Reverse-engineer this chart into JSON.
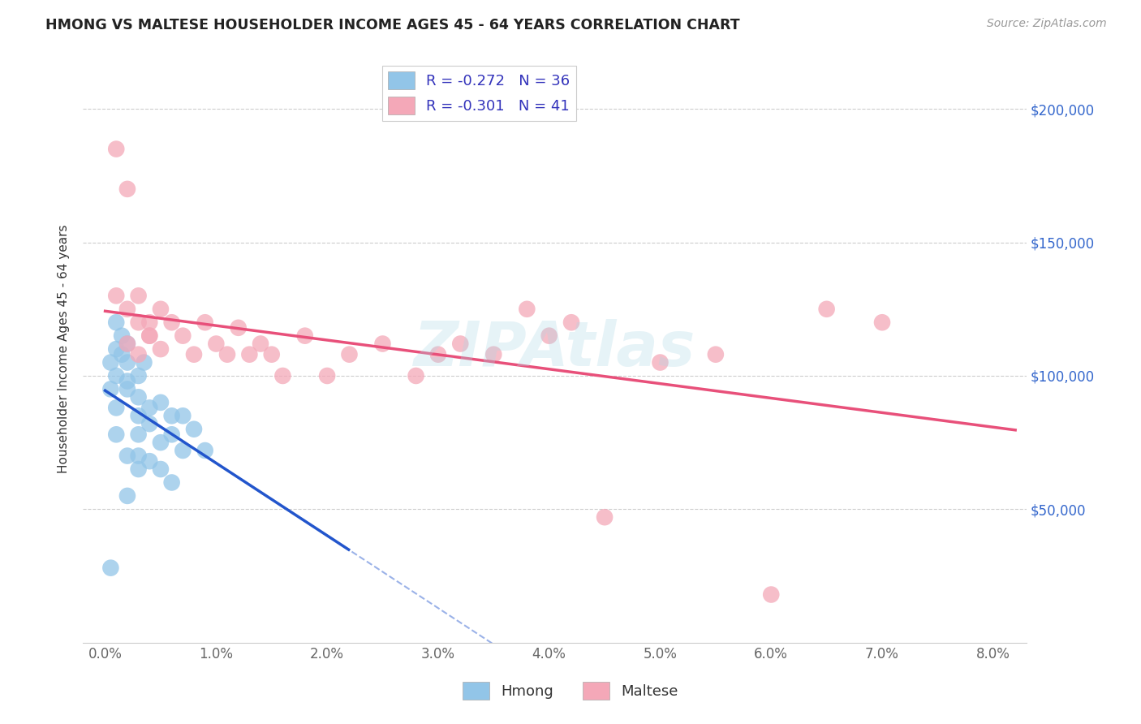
{
  "title": "HMONG VS MALTESE HOUSEHOLDER INCOME AGES 45 - 64 YEARS CORRELATION CHART",
  "source": "Source: ZipAtlas.com",
  "ylabel": "Householder Income Ages 45 - 64 years",
  "xlabel_ticks": [
    "0.0%",
    "1.0%",
    "2.0%",
    "3.0%",
    "4.0%",
    "5.0%",
    "6.0%",
    "7.0%",
    "8.0%"
  ],
  "xlabel_vals": [
    0.0,
    0.01,
    0.02,
    0.03,
    0.04,
    0.05,
    0.06,
    0.07,
    0.08
  ],
  "ytick_labels": [
    "$50,000",
    "$100,000",
    "$150,000",
    "$200,000"
  ],
  "ytick_vals": [
    50000,
    100000,
    150000,
    200000
  ],
  "ylim": [
    0,
    220000
  ],
  "xlim": [
    -0.002,
    0.083
  ],
  "legend_hmong": "R = -0.272   N = 36",
  "legend_maltese": "R = -0.301   N = 41",
  "hmong_color": "#92C5E8",
  "maltese_color": "#F4A8B8",
  "hmong_line_color": "#2255CC",
  "maltese_line_color": "#E8507A",
  "watermark": "ZIPAtlas",
  "background_color": "#ffffff",
  "grid_color": "#cccccc",
  "hmong_x": [
    0.0005,
    0.001,
    0.001,
    0.001,
    0.0015,
    0.0015,
    0.002,
    0.002,
    0.002,
    0.002,
    0.003,
    0.003,
    0.003,
    0.003,
    0.0035,
    0.004,
    0.004,
    0.005,
    0.005,
    0.006,
    0.006,
    0.007,
    0.007,
    0.008,
    0.009,
    0.0005,
    0.001,
    0.001,
    0.002,
    0.003,
    0.003,
    0.004,
    0.005,
    0.006,
    0.002,
    0.0005
  ],
  "hmong_y": [
    105000,
    120000,
    110000,
    100000,
    115000,
    108000,
    105000,
    98000,
    112000,
    95000,
    100000,
    92000,
    85000,
    78000,
    105000,
    88000,
    82000,
    90000,
    75000,
    85000,
    78000,
    85000,
    72000,
    80000,
    72000,
    95000,
    88000,
    78000,
    70000,
    70000,
    65000,
    68000,
    65000,
    60000,
    55000,
    28000
  ],
  "maltese_x": [
    0.001,
    0.001,
    0.002,
    0.002,
    0.003,
    0.003,
    0.004,
    0.004,
    0.005,
    0.005,
    0.006,
    0.007,
    0.008,
    0.009,
    0.01,
    0.011,
    0.012,
    0.013,
    0.014,
    0.015,
    0.016,
    0.018,
    0.02,
    0.022,
    0.025,
    0.028,
    0.03,
    0.032,
    0.035,
    0.038,
    0.04,
    0.042,
    0.045,
    0.05,
    0.055,
    0.06,
    0.065,
    0.07,
    0.002,
    0.003,
    0.004
  ],
  "maltese_y": [
    185000,
    130000,
    170000,
    125000,
    120000,
    130000,
    120000,
    115000,
    125000,
    110000,
    120000,
    115000,
    108000,
    120000,
    112000,
    108000,
    118000,
    108000,
    112000,
    108000,
    100000,
    115000,
    100000,
    108000,
    112000,
    100000,
    108000,
    112000,
    108000,
    125000,
    115000,
    120000,
    47000,
    105000,
    108000,
    18000,
    125000,
    120000,
    112000,
    108000,
    115000
  ]
}
